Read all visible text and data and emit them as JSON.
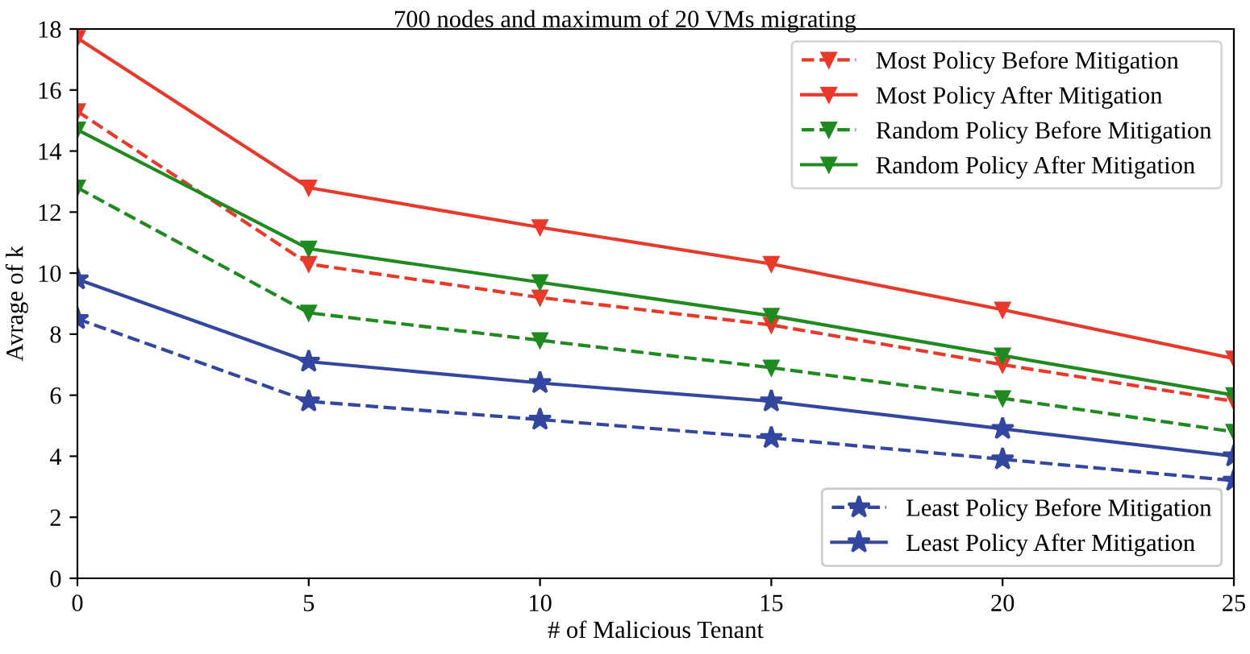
{
  "chart_data": {
    "type": "line",
    "title": "700 nodes and maximum of 20 VMs migrating",
    "xlabel": "# of Malicious Tenant",
    "ylabel": "Avrage of k",
    "x": [
      0,
      5,
      10,
      15,
      20,
      25
    ],
    "xlim": [
      0,
      25
    ],
    "xticks": [
      0,
      5,
      10,
      15,
      20,
      25
    ],
    "ylim": [
      0,
      18
    ],
    "yticks": [
      0,
      2,
      4,
      6,
      8,
      10,
      12,
      14,
      16,
      18
    ],
    "grid": false,
    "legend": "top right",
    "series": [
      {
        "name": "Most Policy Before Mitigation",
        "color": "#e8392a",
        "line_style": "dashed",
        "marker": "triangle",
        "values": [
          15.3,
          10.3,
          9.2,
          8.3,
          7.0,
          5.8
        ]
      },
      {
        "name": "Most Policy After Mitigation",
        "color": "#e8392a",
        "line_style": "solid",
        "marker": "triangle",
        "values": [
          17.7,
          12.8,
          11.5,
          10.3,
          8.8,
          7.2
        ]
      },
      {
        "name": "Random Policy Before Mitigation",
        "color": "#1f8a1f",
        "line_style": "dashed",
        "marker": "triangle",
        "values": [
          12.8,
          8.7,
          7.8,
          6.9,
          5.9,
          4.8
        ]
      },
      {
        "name": "Random Policy After Mitigation",
        "color": "#1f8a1f",
        "line_style": "solid",
        "marker": "triangle",
        "values": [
          14.7,
          10.8,
          9.7,
          8.6,
          7.3,
          6.0
        ]
      },
      {
        "name": "Least Policy Before Mitigation",
        "color": "#3346a0",
        "line_style": "dashed",
        "marker": "star",
        "values": [
          8.5,
          5.8,
          5.2,
          4.6,
          3.9,
          3.2
        ]
      },
      {
        "name": "Least Policy After Mitigation",
        "color": "#3346a0",
        "line_style": "solid",
        "marker": "star",
        "values": [
          9.8,
          7.1,
          6.4,
          5.8,
          4.9,
          4.0
        ]
      }
    ]
  }
}
